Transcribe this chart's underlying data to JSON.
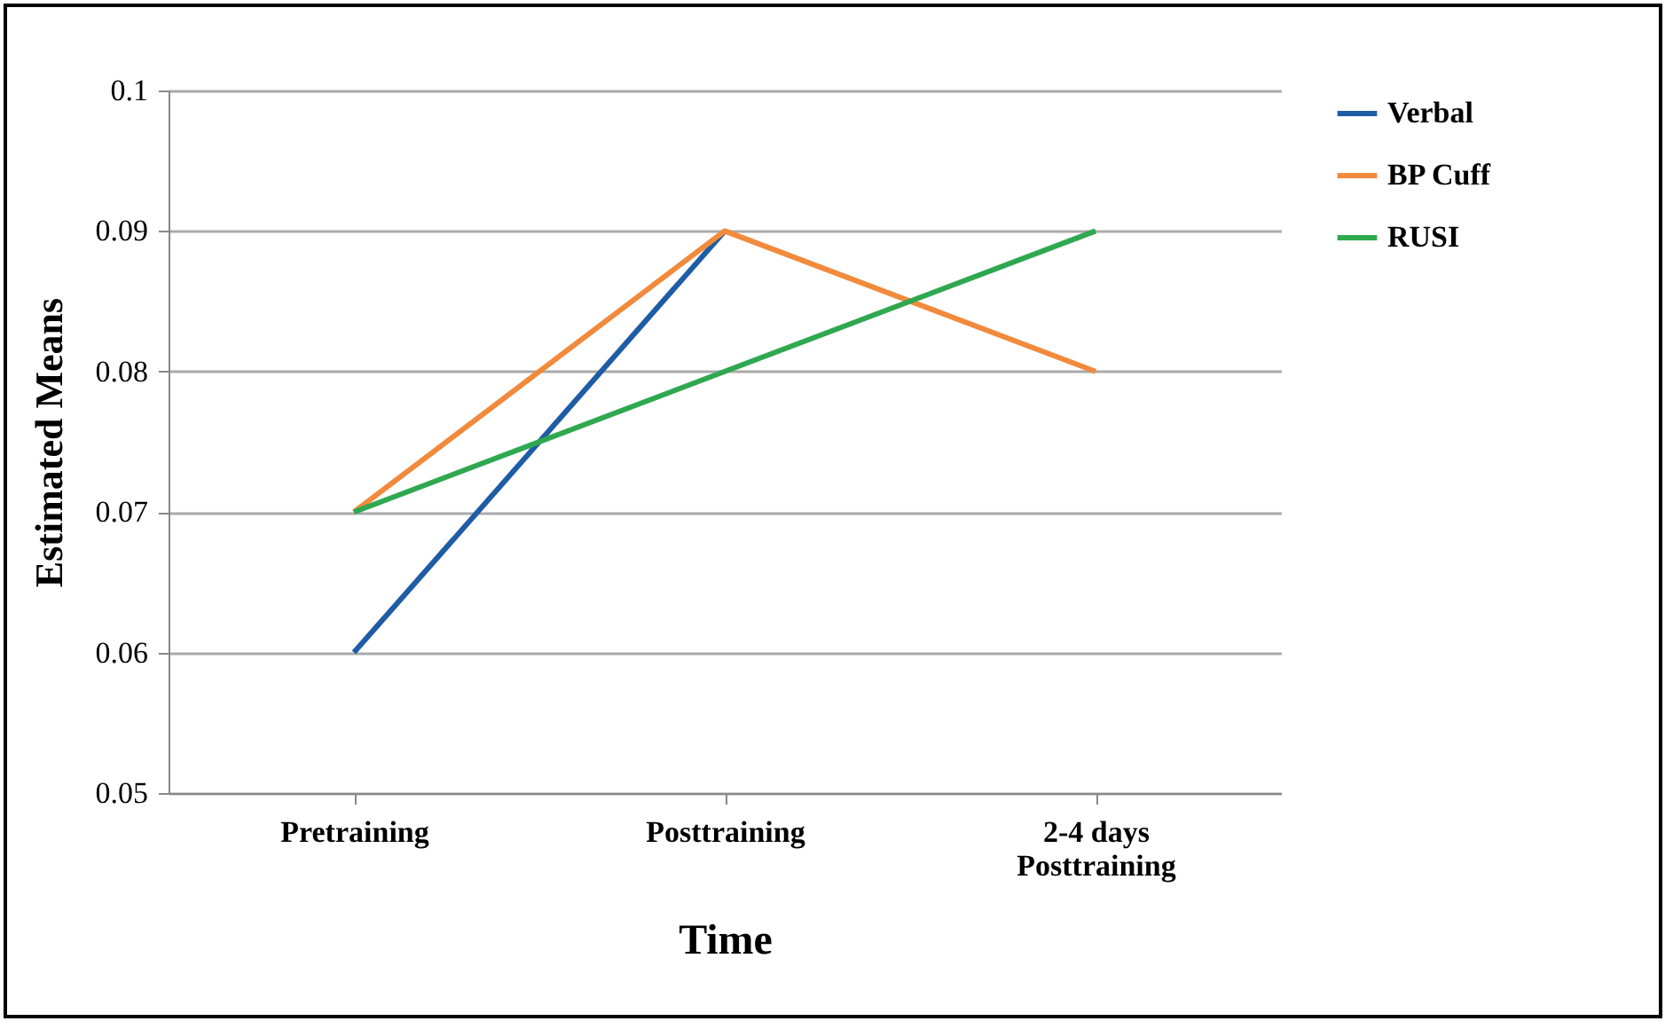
{
  "chart_data": {
    "type": "line",
    "xlabel": "Time",
    "ylabel": "Estimated Means",
    "categories": [
      "Pretraining",
      "Posttraining",
      "2-4 days Posttraining"
    ],
    "series": [
      {
        "name": "Verbal",
        "color": "#1f5ca6",
        "values": [
          0.06,
          0.09,
          null
        ]
      },
      {
        "name": "BP Cuff",
        "color": "#f28a3c",
        "values": [
          0.07,
          0.09,
          0.08
        ]
      },
      {
        "name": "RUSI",
        "color": "#2fa84f",
        "values": [
          0.07,
          0.08,
          0.09
        ]
      }
    ],
    "ylim": [
      0.05,
      0.1
    ],
    "yticks": [
      0.05,
      0.06,
      0.07,
      0.08,
      0.09,
      0.1
    ],
    "grid": "y",
    "legend": "right",
    "marker": "none",
    "line_style": "solid"
  }
}
